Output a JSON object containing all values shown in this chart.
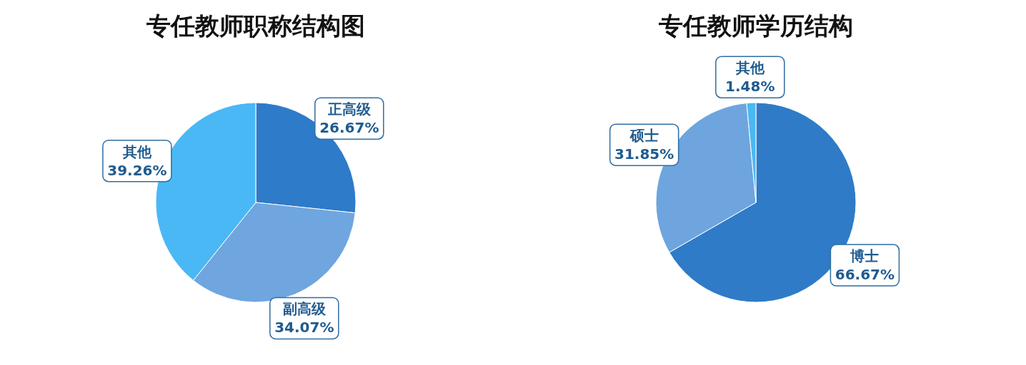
{
  "chart_data": [
    {
      "type": "pie",
      "title": "专任教师职称结构图",
      "categories": [
        "正高级",
        "副高级",
        "其他"
      ],
      "values": [
        26.67,
        34.07,
        39.26
      ],
      "colors": [
        "#2e7bc9",
        "#6fa6df",
        "#4ab8f5"
      ],
      "value_labels": [
        "26.67%",
        "34.07%",
        "39.26%"
      ]
    },
    {
      "type": "pie",
      "title": "专任教师学历结构",
      "categories": [
        "博士",
        "硕士",
        "其他"
      ],
      "values": [
        66.67,
        31.85,
        1.48
      ],
      "colors": [
        "#2f7bc8",
        "#6ea5de",
        "#4ab8f5"
      ],
      "value_labels": [
        "66.67%",
        "31.85%",
        "1.48%"
      ]
    }
  ]
}
